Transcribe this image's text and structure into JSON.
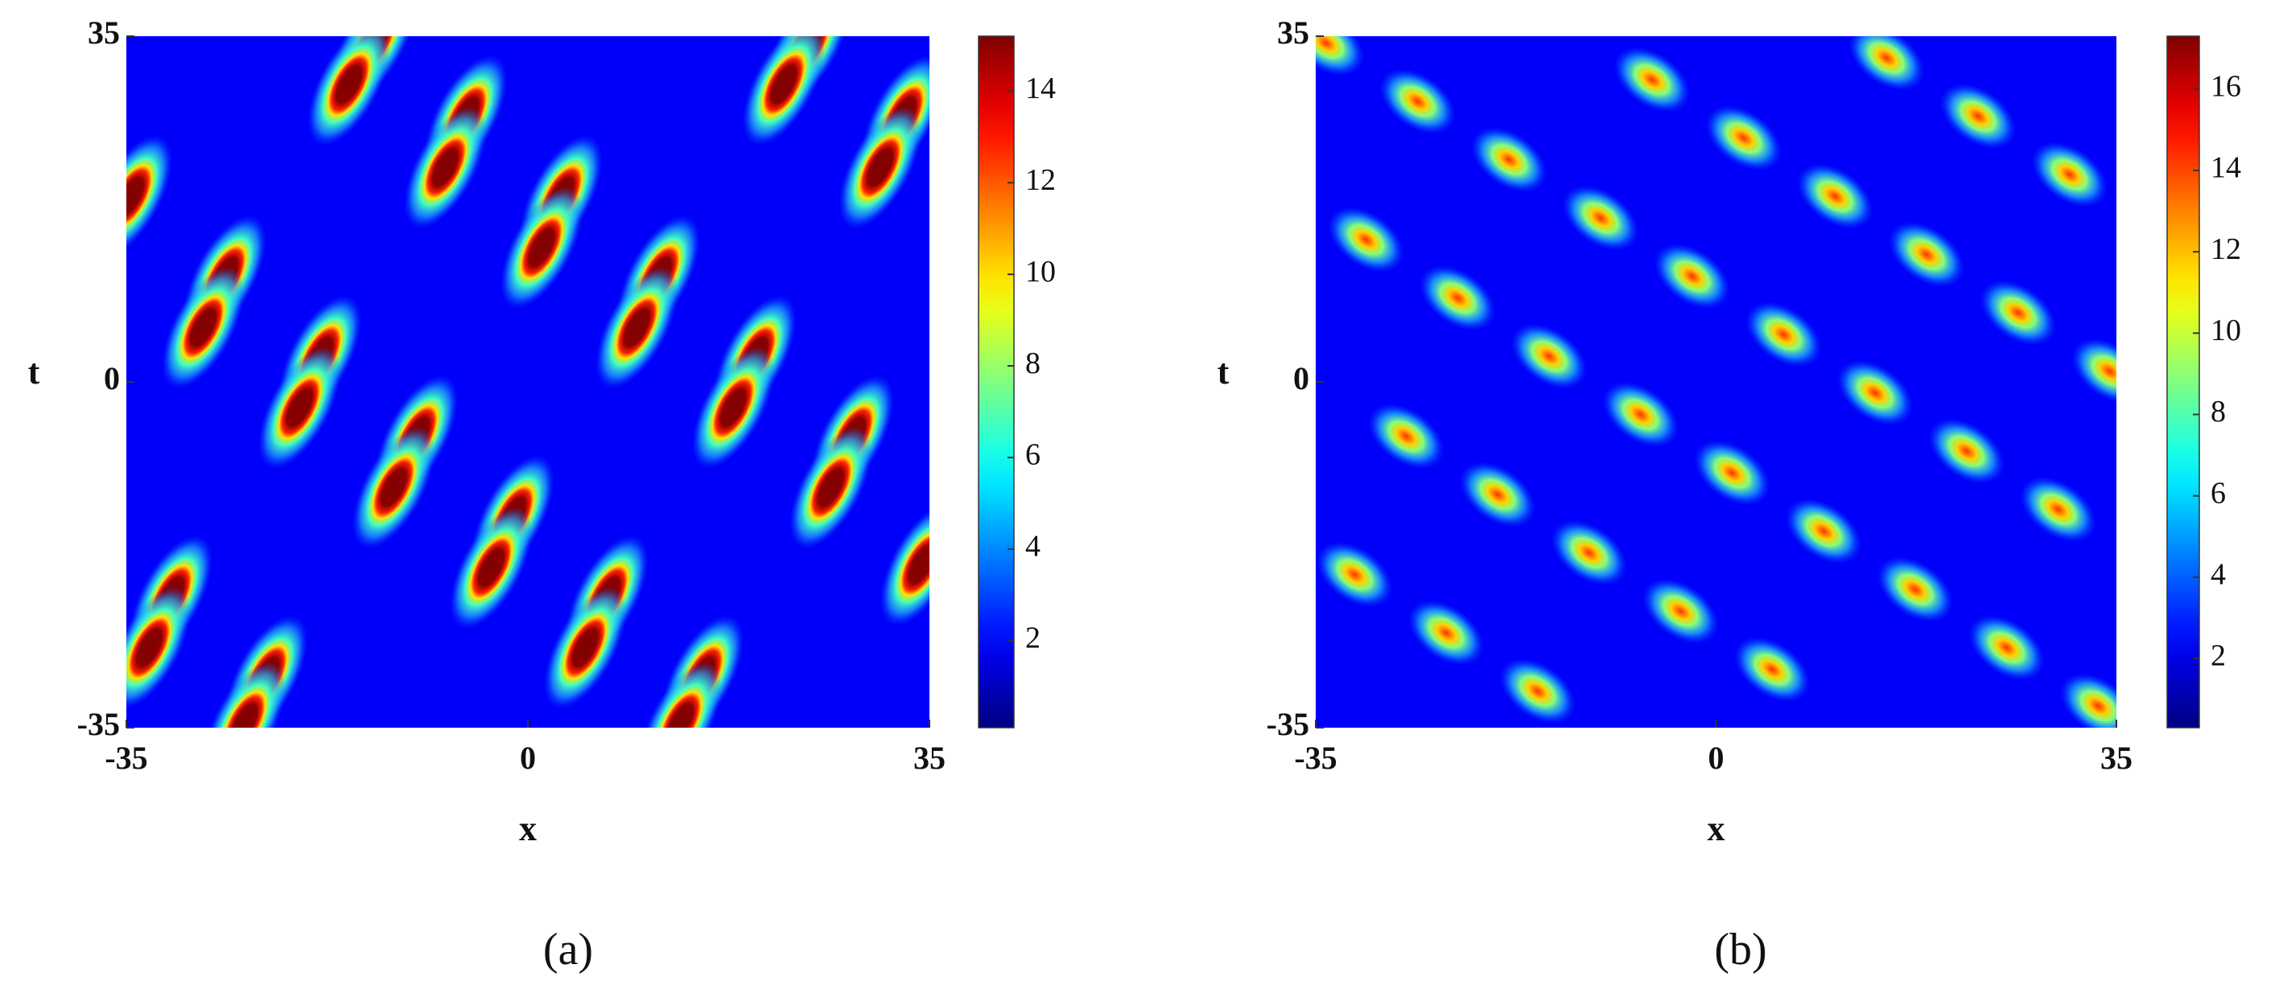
{
  "chart_data": [
    {
      "type": "heatmap",
      "label": "(a)",
      "xlabel": "x",
      "ylabel": "t",
      "xlim": [
        -35,
        35
      ],
      "ylim": [
        -35,
        35
      ],
      "xticks": [
        -35,
        0,
        35
      ],
      "yticks": [
        -35,
        0,
        35
      ],
      "zlim": [
        0.1,
        15.2
      ],
      "zticks": [
        2,
        4,
        6,
        8,
        10,
        12,
        14
      ],
      "colormap": "jet",
      "x": [
        -13.3,
        -15.6,
        -5.4,
        -7.2,
        2.9,
        1.2,
        11.4,
        9.5,
        19.8,
        17.9,
        28.3,
        26.4,
        34.3,
        -34.6,
        -26.4,
        -28.3,
        -18.1,
        -19.9,
        -9.7,
        -11.7,
        -1.3,
        -3.2,
        6.9,
        5.0,
        15.2,
        13.3,
        -31.1,
        -33.0,
        -22.8,
        -24.7,
        24.5,
        22.3,
        32.7,
        30.7
      ],
      "y": [
        34.6,
        30.1,
        26.9,
        21.7,
        18.8,
        13.6,
        10.7,
        5.5,
        2.6,
        -2.6,
        -5.5,
        -10.7,
        -18.5,
        18.8,
        10.7,
        5.5,
        2.6,
        -2.6,
        -5.5,
        -10.7,
        -13.6,
        -18.8,
        -21.7,
        -26.9,
        -29.8,
        -34.5,
        -21.7,
        -26.9,
        -29.8,
        -34.5,
        34.3,
        30.1,
        26.9,
        21.7
      ]
    },
    {
      "type": "heatmap",
      "label": "(b)",
      "xlabel": "x",
      "ylabel": "t",
      "xlim": [
        -35,
        35
      ],
      "ylim": [
        -35,
        35
      ],
      "xticks": [
        -35,
        0,
        35
      ],
      "yticks": [
        -35,
        0,
        35
      ],
      "zlim": [
        0.3,
        17.3
      ],
      "zticks": [
        2,
        4,
        6,
        8,
        10,
        12,
        14,
        16
      ],
      "colormap": "jet",
      "x": [
        -34.1,
        -26.1,
        -18.1,
        -10.1,
        -2.1,
        5.9,
        13.9,
        21.9,
        29.9,
        -30.6,
        -22.6,
        -14.6,
        -6.6,
        1.4,
        9.4,
        17.4,
        25.4,
        33.4,
        -27.1,
        -19.1,
        -11.1,
        -3.1,
        4.9,
        -31.6,
        -23.6,
        -15.6,
        -5.6,
        2.4,
        10.4,
        18.4,
        26.4,
        34.4,
        14.9,
        22.9,
        30.9
      ],
      "y": [
        34.3,
        28.4,
        22.5,
        16.6,
        10.7,
        4.8,
        -1.1,
        -7.0,
        -12.9,
        14.4,
        8.5,
        2.6,
        -3.3,
        -9.2,
        -15.1,
        -21.0,
        -26.9,
        -32.8,
        -5.5,
        -11.4,
        -17.3,
        -23.2,
        -29.1,
        -19.5,
        -25.4,
        -31.3,
        30.6,
        24.7,
        18.8,
        12.9,
        7.0,
        1.1,
        32.8,
        26.9,
        21.0
      ]
    }
  ]
}
